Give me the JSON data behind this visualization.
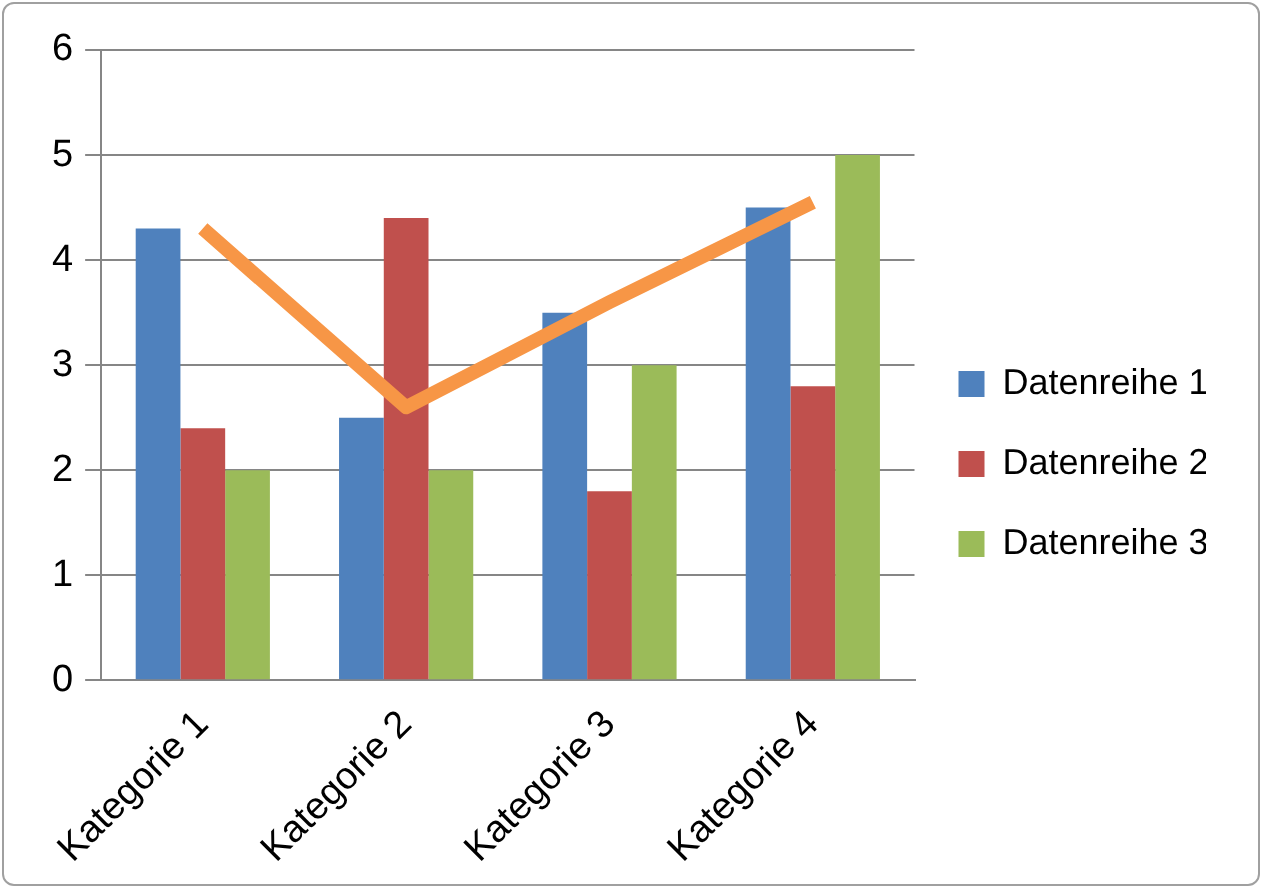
{
  "chart_data": {
    "type": "bar",
    "categories": [
      "Kategorie 1",
      "Kategorie 2",
      "Kategorie 3",
      "Kategorie 4"
    ],
    "series": [
      {
        "name": "Datenreihe 1",
        "color": "#4f81bd",
        "values": [
          4.3,
          2.5,
          3.5,
          4.5
        ]
      },
      {
        "name": "Datenreihe 2",
        "color": "#c0504d",
        "values": [
          2.4,
          4.4,
          1.8,
          2.8
        ]
      },
      {
        "name": "Datenreihe 3",
        "color": "#9bbb59",
        "values": [
          2,
          2,
          3,
          5
        ]
      },
      {
        "type": "line",
        "color": "#f79646",
        "values": [
          4.3,
          2.6,
          3.6,
          4.55
        ]
      }
    ],
    "ylim": [
      0,
      6
    ],
    "yticks": [
      0,
      1,
      2,
      3,
      4,
      5,
      6
    ],
    "grid": "y",
    "legend": "right",
    "marker": "none"
  }
}
